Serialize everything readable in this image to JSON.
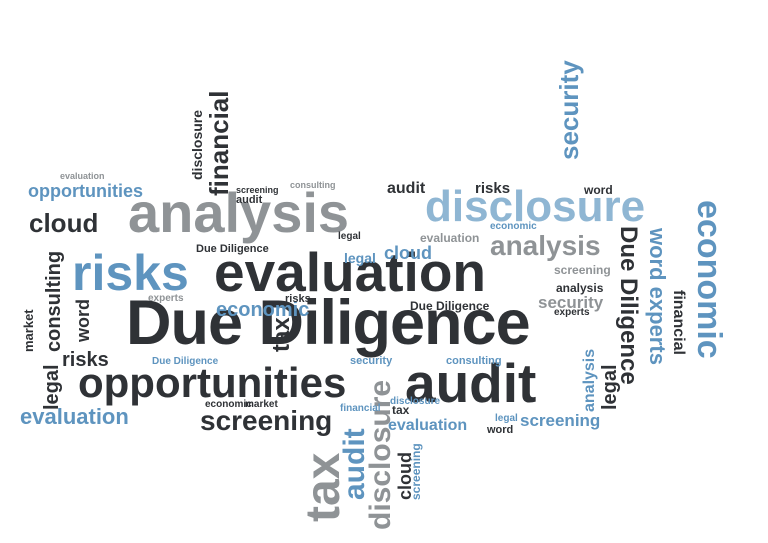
{
  "words": {
    "due_diligence": "Due Diligence",
    "analysis": "analysis",
    "disclosure": "disclosure",
    "risks": "risks",
    "evaluation": "evaluation",
    "opportunities": "opportunities",
    "audit": "audit",
    "screening": "screening",
    "economic": "economic",
    "financial": "financial",
    "cloud": "cloud",
    "security": "security",
    "consulting": "consulting",
    "market": "market",
    "legal": "legal",
    "word": "word",
    "tax": "tax",
    "experts": "experts",
    "word_experts": "word experts"
  },
  "colors": {
    "dark": "#2f3236",
    "gray": "#8f9396",
    "light_blue": "#8fb6d3",
    "blue": "#5e94bf"
  }
}
